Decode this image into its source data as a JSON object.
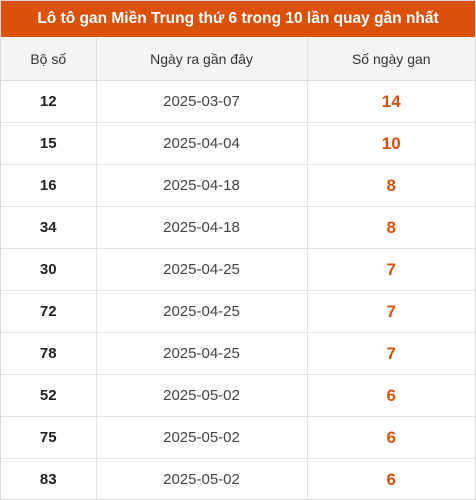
{
  "title": "Lô tô gan Miền Trung thứ 6 trong 10 lần quay gần nhất",
  "colors": {
    "header_bg": "#d9510b",
    "highlight": "#d9510b",
    "table_header_bg": "#f4f4f4"
  },
  "columns": [
    "Bộ số",
    "Ngày ra gần đây",
    "Số ngày gan"
  ],
  "rows": [
    {
      "number": "12",
      "last_date": "2025-03-07",
      "days": "14"
    },
    {
      "number": "15",
      "last_date": "2025-04-04",
      "days": "10"
    },
    {
      "number": "16",
      "last_date": "2025-04-18",
      "days": "8"
    },
    {
      "number": "34",
      "last_date": "2025-04-18",
      "days": "8"
    },
    {
      "number": "30",
      "last_date": "2025-04-25",
      "days": "7"
    },
    {
      "number": "72",
      "last_date": "2025-04-25",
      "days": "7"
    },
    {
      "number": "78",
      "last_date": "2025-04-25",
      "days": "7"
    },
    {
      "number": "52",
      "last_date": "2025-05-02",
      "days": "6"
    },
    {
      "number": "75",
      "last_date": "2025-05-02",
      "days": "6"
    },
    {
      "number": "83",
      "last_date": "2025-05-02",
      "days": "6"
    }
  ]
}
